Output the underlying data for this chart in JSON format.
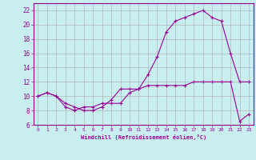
{
  "title": "Windchill (Refroidissement éolien,°C)",
  "background_color": "#c8eef0",
  "line_color": "#990099",
  "xlim": [
    -0.5,
    23.5
  ],
  "ylim": [
    6,
    23
  ],
  "xticks": [
    0,
    1,
    2,
    3,
    4,
    5,
    6,
    7,
    8,
    9,
    10,
    11,
    12,
    13,
    14,
    15,
    16,
    17,
    18,
    19,
    20,
    21,
    22,
    23
  ],
  "yticks": [
    6,
    8,
    10,
    12,
    14,
    16,
    18,
    20,
    22
  ],
  "curve1_x": [
    0,
    1,
    2,
    3,
    4,
    5,
    6,
    7,
    8,
    9,
    10,
    11,
    12,
    13,
    14,
    15,
    16,
    17,
    18,
    19,
    20,
    21,
    22,
    23
  ],
  "curve1_y": [
    10,
    10.5,
    10,
    9,
    8.5,
    8,
    8,
    8.5,
    9.5,
    11,
    11,
    11,
    11.5,
    11.5,
    11.5,
    11.5,
    11.5,
    12,
    12,
    12,
    12,
    12,
    6.5,
    7.5
  ],
  "curve2_x": [
    0,
    1,
    2,
    3,
    4,
    5,
    6,
    7,
    8,
    9,
    10,
    11,
    12,
    13,
    14,
    15,
    16,
    17,
    18,
    19,
    20,
    21,
    22,
    23
  ],
  "curve2_y": [
    10,
    10.5,
    10,
    8.5,
    8,
    8.5,
    8.5,
    9,
    9,
    9,
    10.5,
    11,
    13,
    15.5,
    19,
    20.5,
    21,
    21.5,
    22,
    21,
    20.5,
    16,
    12,
    12
  ],
  "grid_color": "#aaaaaa",
  "marker": "+"
}
